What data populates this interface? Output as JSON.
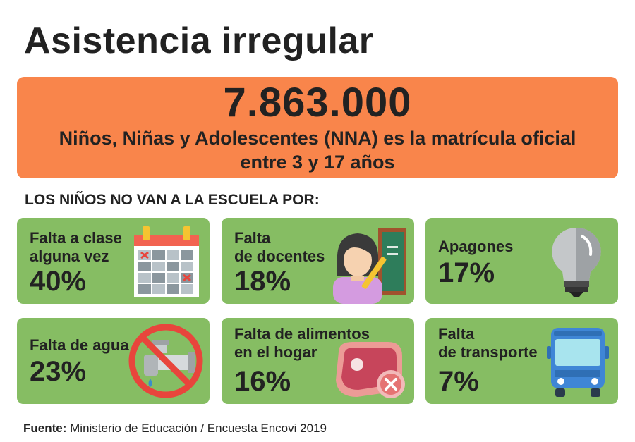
{
  "title": "Asistencia irregular",
  "banner": {
    "number": "7.863.000",
    "line1": "Niños, Niñas y Adolescentes (NNA) es la matrícula oficial",
    "line2": "entre 3 y 17 años"
  },
  "section_title": "LOS NIÑOS NO VAN A LA ESCUELA POR:",
  "cards": [
    {
      "label_line1": "Falta a clase",
      "label_line2": "alguna vez",
      "percent": "40%",
      "icon": "calendar-icon"
    },
    {
      "label_line1": "Falta",
      "label_line2": "de docentes",
      "percent": "18%",
      "icon": "teacher-icon"
    },
    {
      "label_line1": "Apagones",
      "label_line2": "",
      "percent": "17%",
      "icon": "lightbulb-icon"
    },
    {
      "label_line1": "Falta de agua",
      "label_line2": "",
      "percent": "23%",
      "icon": "no-water-icon"
    },
    {
      "label_line1": "Falta de alimentos",
      "label_line2": "en el hogar",
      "percent": "16%",
      "icon": "no-food-icon"
    },
    {
      "label_line1": "Falta",
      "label_line2": "de transporte",
      "percent": "7%",
      "icon": "bus-icon"
    }
  ],
  "source": {
    "label": "Fuente:",
    "text": "Ministerio de Educación / Encuesta Encovi 2019"
  },
  "colors": {
    "banner": "#f9854b",
    "card": "#86bd63",
    "text": "#222222"
  }
}
